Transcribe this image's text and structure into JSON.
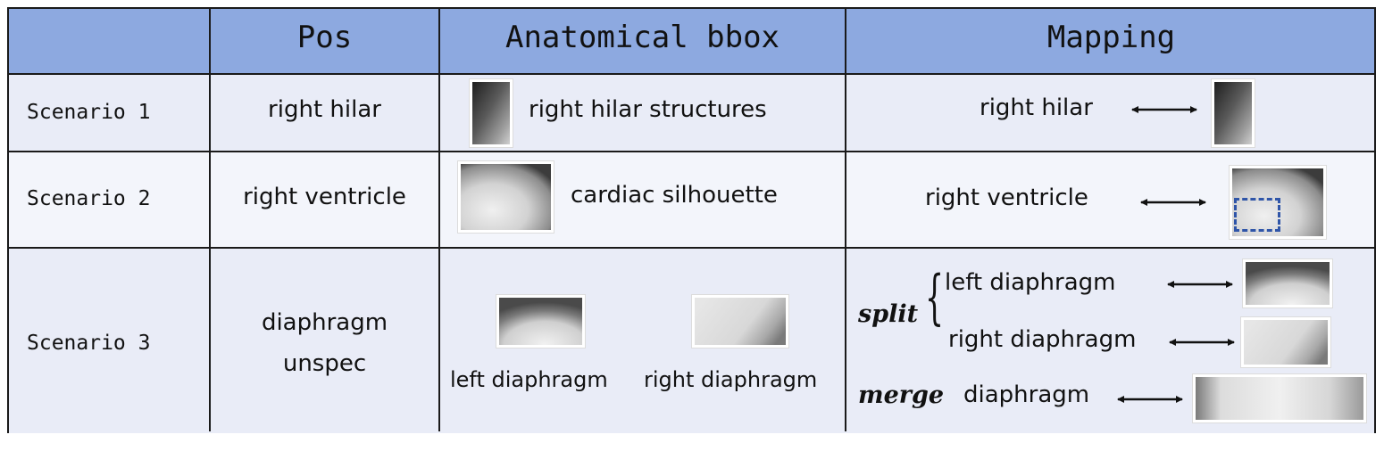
{
  "header": {
    "col_pos": "Pos",
    "col_anat": "Anatomical bbox",
    "col_map": "Mapping"
  },
  "rows": [
    {
      "scenario": "Scenario 1",
      "pos": "right hilar",
      "anat_label": "right hilar structures",
      "map_label": "right hilar"
    },
    {
      "scenario": "Scenario 2",
      "pos": "right ventricle",
      "anat_label": "cardiac silhouette",
      "map_label": "right ventricle"
    },
    {
      "scenario": "Scenario 3",
      "pos_line1": "diaphragm",
      "pos_line2": "unspec",
      "anat_labels": [
        "left diaphragm",
        "right diaphragm"
      ],
      "split_label": "split",
      "split_items": [
        "left  diaphragm",
        "right diaphragm"
      ],
      "merge_label": "merge",
      "merge_item": "diaphragm"
    }
  ],
  "colors": {
    "header_bg": "#8da9e0",
    "row_bg": "#e9ecf7",
    "dashed_box": "#2f55a8"
  }
}
